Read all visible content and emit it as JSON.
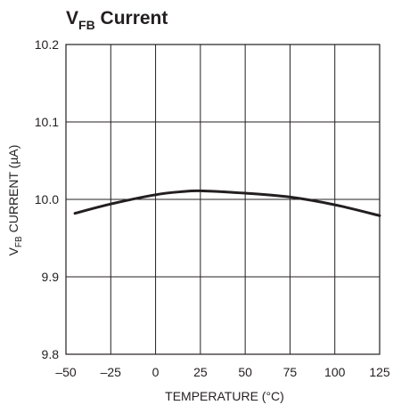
{
  "chart_data": {
    "type": "line",
    "title": {
      "main": "V",
      "sub": "FB",
      "rest": " Current"
    },
    "xlabel": "TEMPERATURE (°C)",
    "ylabel": {
      "main": "V",
      "sub": "FB",
      "rest": " CURRENT (µA)"
    },
    "xlim": [
      -50,
      125
    ],
    "ylim": [
      9.8,
      10.2
    ],
    "x_ticks": [
      -50,
      -25,
      0,
      25,
      50,
      75,
      100,
      125
    ],
    "x_tick_labels": [
      "–50",
      "–25",
      "0",
      "25",
      "50",
      "75",
      "100",
      "125"
    ],
    "y_ticks": [
      9.8,
      9.9,
      10.0,
      10.1,
      10.2
    ],
    "y_tick_labels": [
      "9.8",
      "9.9",
      "10.0",
      "10.1",
      "10.2"
    ],
    "grid": true,
    "series": [
      {
        "color": "#231f20",
        "x": [
          -45,
          -25,
          0,
          15,
          25,
          50,
          75,
          100,
          125
        ],
        "y": [
          9.982,
          9.994,
          10.006,
          10.01,
          10.011,
          10.008,
          10.003,
          9.993,
          9.979
        ]
      }
    ]
  }
}
